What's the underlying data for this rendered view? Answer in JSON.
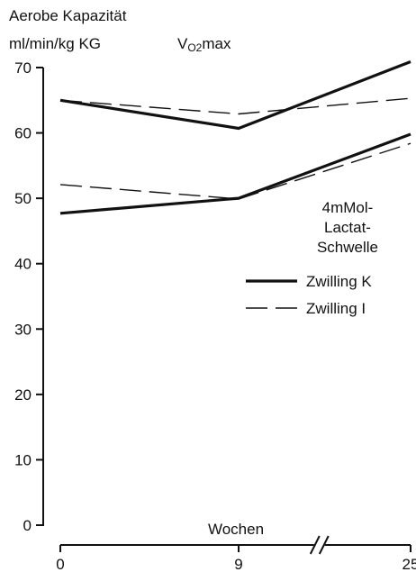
{
  "chart_data": {
    "type": "line",
    "title": "Aerobe Kapazität",
    "ylabel": "ml/min/kg KG",
    "xlabel": "Wochen",
    "ylim": [
      0,
      70
    ],
    "yticks": [
      0,
      10,
      20,
      30,
      40,
      50,
      60,
      70
    ],
    "x": [
      0,
      9,
      25
    ],
    "xticklabels": [
      "0",
      "9",
      "25"
    ],
    "axis_break_between": [
      9,
      25
    ],
    "annotations": {
      "upper_group": "VO2max",
      "upper_group_main": "V",
      "upper_group_sub": "O2",
      "upper_group_tail": "max",
      "lower_group": "4mMol-Lactat-Schwelle",
      "lower_group_lines": [
        "4mMol-",
        "Lactat-",
        "Schwelle"
      ]
    },
    "series": [
      {
        "name": "Zwilling K",
        "group": "VO2max",
        "style": "solid",
        "values": [
          65,
          60.7,
          70.9
        ]
      },
      {
        "name": "Zwilling I",
        "group": "VO2max",
        "style": "dashed",
        "values": [
          65,
          62.9,
          65.3
        ]
      },
      {
        "name": "Zwilling K",
        "group": "4mMol-Lactat-Schwelle",
        "style": "solid",
        "values": [
          47.7,
          50,
          59.8
        ]
      },
      {
        "name": "Zwilling I",
        "group": "4mMol-Lactat-Schwelle",
        "style": "dashed",
        "values": [
          52.1,
          49.9,
          58.4
        ]
      }
    ],
    "legend": [
      {
        "label": "Zwilling K",
        "style": "solid"
      },
      {
        "label": "Zwilling I",
        "style": "dashed"
      }
    ],
    "legend_position": "right",
    "grid": false,
    "colors": {
      "line": "#111111",
      "background": "#ffffff"
    }
  }
}
